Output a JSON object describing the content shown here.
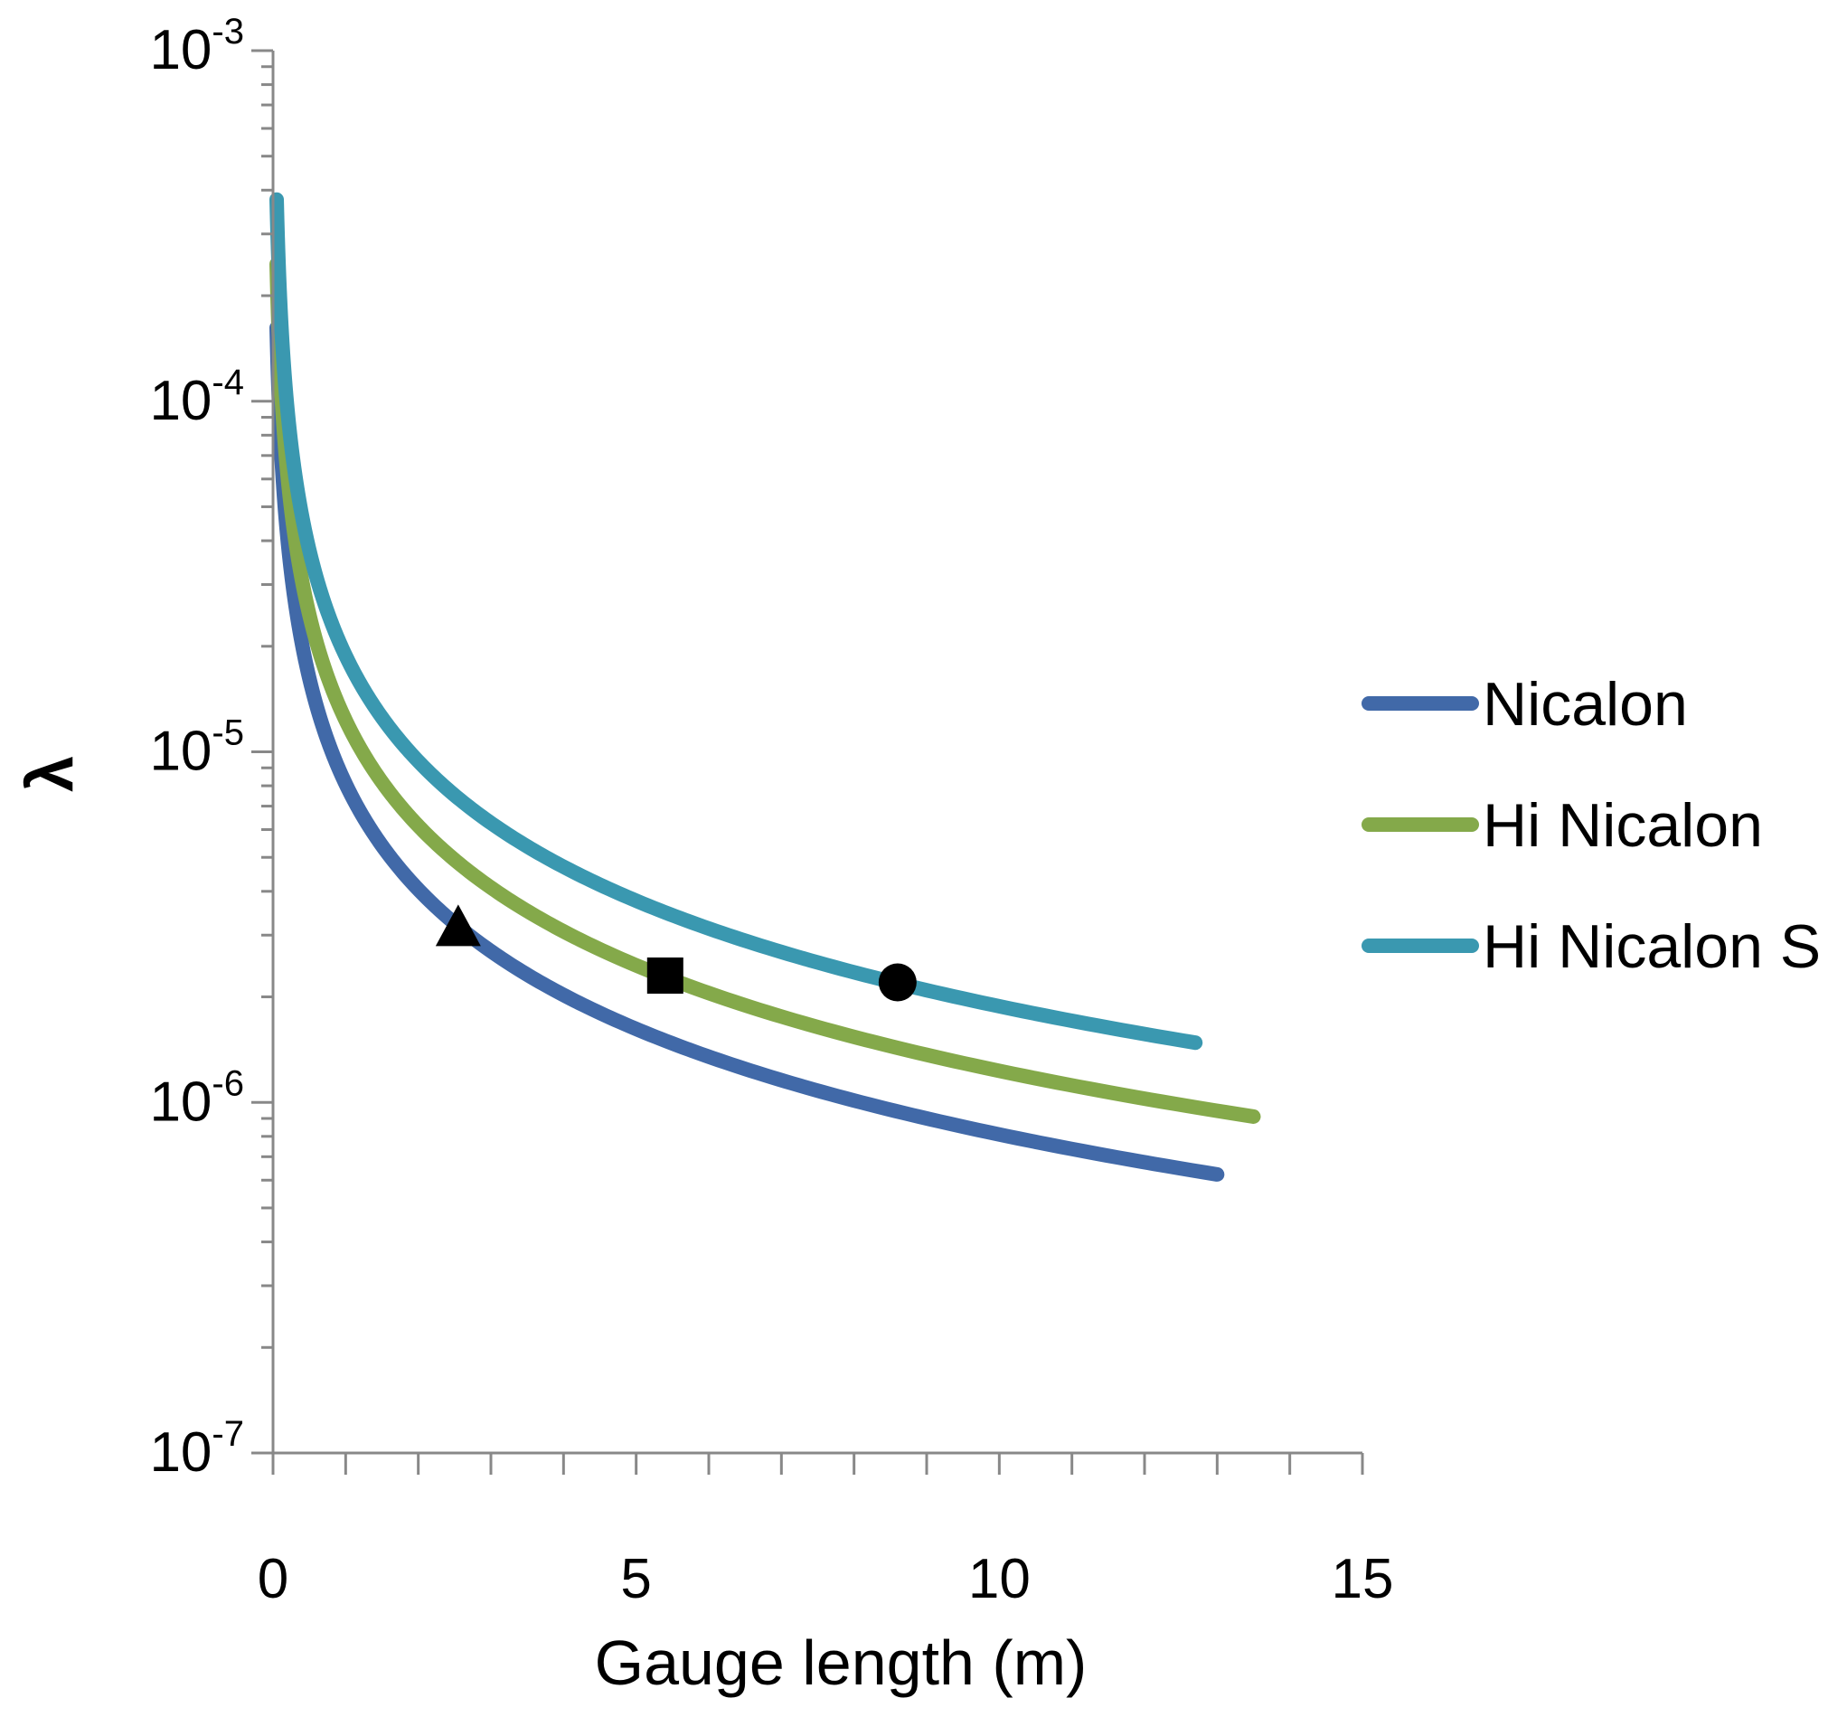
{
  "chart_data": {
    "type": "line",
    "xlabel": "Gauge length (m)",
    "ylabel": "λ",
    "xlim": [
      0,
      15
    ],
    "ylim": [
      1e-07,
      0.001
    ],
    "yscale": "log",
    "xticks": [
      0,
      5,
      10,
      15
    ],
    "xtick_labels": [
      "0",
      "5",
      "10",
      "15"
    ],
    "yticks": [
      {
        "base": "10",
        "exp": "-3",
        "value": 0.001
      },
      {
        "base": "10",
        "exp": "-4",
        "value": 0.0001
      },
      {
        "base": "10",
        "exp": "-5",
        "value": 1e-05
      },
      {
        "base": "10",
        "exp": "-6",
        "value": 1e-06
      },
      {
        "base": "10",
        "exp": "-7",
        "value": 1e-07
      }
    ],
    "grid": false,
    "legend_position": "right",
    "series": [
      {
        "name": "Nicalon",
        "color": "#4169a8",
        "k": 8.1e-06,
        "x_start": 0.05,
        "x_end": 13.0
      },
      {
        "name": "Hi Nicalon",
        "color": "#84a94a",
        "k": 1.23e-05,
        "x_start": 0.05,
        "x_end": 13.5
      },
      {
        "name": "Hi Nicalon S",
        "color": "#3a98b0",
        "k": 1.88e-05,
        "x_start": 0.05,
        "x_end": 12.7
      }
    ],
    "markers": [
      {
        "shape": "triangle",
        "x": 2.55,
        "y": 3.2e-06,
        "color": "#000000"
      },
      {
        "shape": "square",
        "x": 5.4,
        "y": 2.3e-06,
        "color": "#000000"
      },
      {
        "shape": "circle",
        "x": 8.6,
        "y": 2.2e-06,
        "color": "#000000"
      }
    ]
  }
}
